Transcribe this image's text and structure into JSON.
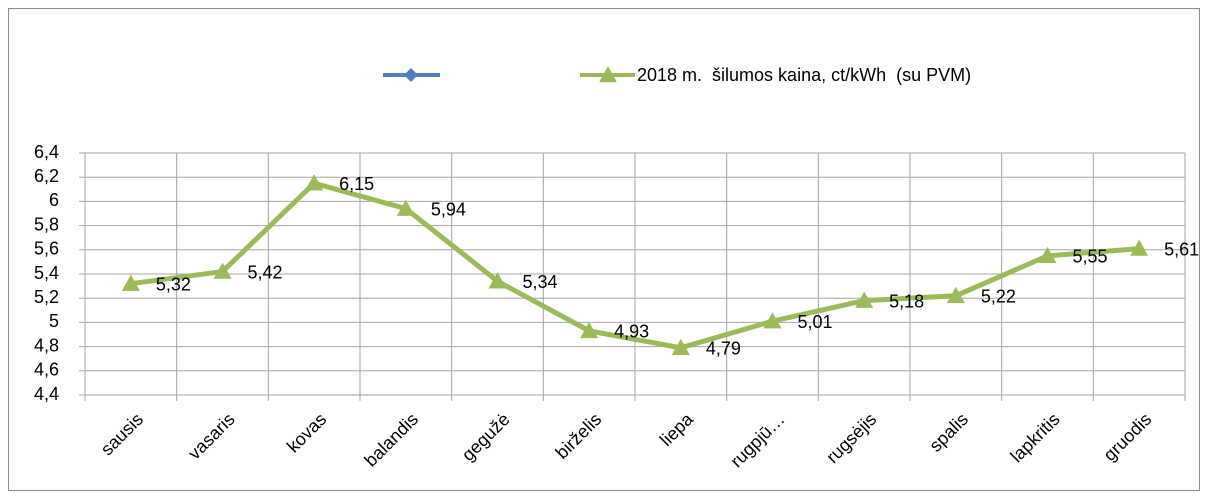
{
  "chart_data": {
    "type": "line",
    "categories": [
      "sausis",
      "vasaris",
      "kovas",
      "balandis",
      "gegužė",
      "birželis",
      "liepa",
      "rugpjū…",
      "rugsėjis",
      "spalis",
      "lapkritis",
      "gruodis"
    ],
    "series": [
      {
        "name": "2018 m.  šilumos kaina, ct/kWh  (su PVM)",
        "color": "#9bbb59",
        "values": [
          5.32,
          5.42,
          6.15,
          5.94,
          5.34,
          4.93,
          4.79,
          5.01,
          5.18,
          5.22,
          5.55,
          5.61
        ],
        "value_labels": [
          "5,32",
          "5,42",
          "6,15",
          "5,94",
          "5,34",
          "4,93",
          "4,79",
          "5,01",
          "5,18",
          "5,22",
          "5,55",
          "5,61"
        ]
      }
    ],
    "ylim": [
      4.4,
      6.4
    ],
    "yticks": [
      {
        "value": 4.4,
        "label": "4,4"
      },
      {
        "value": 4.6,
        "label": "4,6"
      },
      {
        "value": 4.8,
        "label": "4,8"
      },
      5,
      {
        "value": 5.2,
        "label": "5,2"
      },
      {
        "value": 5.4,
        "label": "5,4"
      },
      {
        "value": 5.6,
        "label": "5,6"
      },
      {
        "value": 5.8,
        "label": "5,8"
      },
      6,
      {
        "value": 6.2,
        "label": "6,2"
      },
      {
        "value": 6.4,
        "label": "6,4"
      }
    ],
    "grid": true
  }
}
